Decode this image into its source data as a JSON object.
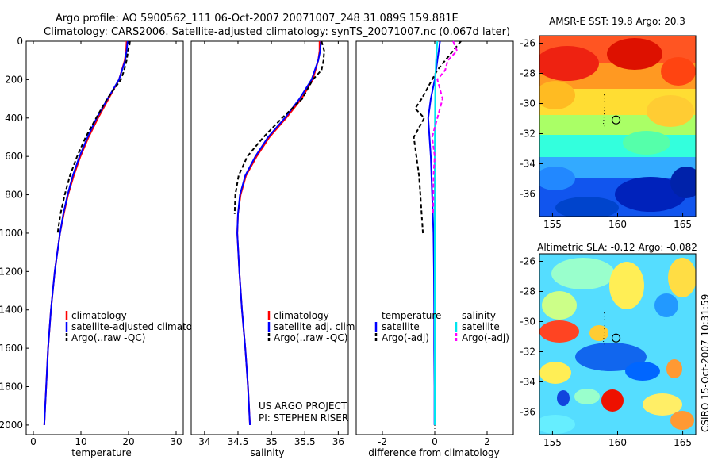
{
  "figure": {
    "title_line1": "Argo profile: AO 5900562_111 06-Oct-2007 20071007_248 31.089S 159.881E",
    "title_line2": "Climatology: CARS2006. Satellite-adjusted climatology: synTS_20071007.nc (0.067d later)",
    "footer_project": "US ARGO PROJECT",
    "footer_pi": "PI: STEPHEN RISER",
    "side_stamp": "CSIRO 15-Oct-2007 10:31:59"
  },
  "colors": {
    "climatology": "#ff0000",
    "satellite": "#0000ff",
    "argo": "#000000",
    "satellite_diff_salinity": "#00e5ee",
    "argo_diff_salinity": "#ff00ff"
  },
  "chart_data": [
    {
      "id": "temperature",
      "type": "line",
      "xlabel": "temperature",
      "xlim": [
        -1.5,
        31.5
      ],
      "ylim": [
        0,
        2050
      ],
      "x_ticks": [
        0,
        10,
        20,
        30
      ],
      "y_ticks": [
        0,
        200,
        400,
        600,
        800,
        1000,
        1200,
        1400,
        1600,
        1800,
        2000
      ],
      "legend": [
        "climatology",
        "satellite-adjusted climatology",
        "Argo(..raw -QC)"
      ],
      "series": [
        {
          "name": "climatology",
          "color": "#ff0000",
          "style": "solid",
          "depth": [
            0,
            50,
            100,
            200,
            300,
            400,
            500,
            600,
            700,
            800,
            900,
            1000,
            1200,
            1400,
            1600,
            1800,
            2000
          ],
          "values": [
            19.6,
            19.5,
            19.2,
            18.0,
            15.8,
            13.6,
            11.6,
            9.9,
            8.5,
            7.3,
            6.4,
            5.6,
            4.5,
            3.7,
            3.1,
            2.7,
            2.3
          ]
        },
        {
          "name": "satellite-adjusted climatology",
          "color": "#0000ff",
          "style": "solid",
          "depth": [
            0,
            50,
            100,
            200,
            300,
            400,
            500,
            600,
            700,
            800,
            900,
            1000,
            1200,
            1400,
            1600,
            1800,
            2000
          ],
          "values": [
            19.8,
            19.6,
            19.3,
            18.0,
            15.6,
            13.3,
            11.4,
            9.7,
            8.3,
            7.2,
            6.3,
            5.6,
            4.5,
            3.7,
            3.1,
            2.7,
            2.3
          ]
        },
        {
          "name": "Argo(..raw -QC)",
          "color": "#000000",
          "style": "dashed",
          "depth": [
            0,
            20,
            50,
            100,
            150,
            200,
            300,
            400,
            500,
            600,
            700,
            800,
            900,
            1000
          ],
          "values": [
            20.3,
            20.2,
            19.9,
            19.6,
            19.1,
            18.4,
            15.5,
            13.2,
            11.0,
            9.2,
            7.7,
            6.6,
            5.7,
            5.1
          ]
        }
      ]
    },
    {
      "id": "salinity",
      "type": "line",
      "xlabel": "salinity",
      "xlim": [
        33.8,
        36.15
      ],
      "ylim": [
        0,
        2050
      ],
      "x_ticks": [
        34,
        34.5,
        35,
        35.5,
        36
      ],
      "legend": [
        "climatology",
        "satellite adj. clim.",
        "Argo(..raw -QC)"
      ],
      "series": [
        {
          "name": "climatology",
          "color": "#ff0000",
          "style": "solid",
          "depth": [
            0,
            50,
            100,
            200,
            300,
            400,
            500,
            600,
            700,
            800,
            900,
            1000,
            1200,
            1400,
            1600,
            1800,
            2000
          ],
          "values": [
            35.72,
            35.72,
            35.7,
            35.62,
            35.45,
            35.22,
            34.97,
            34.78,
            34.62,
            34.54,
            34.5,
            34.49,
            34.52,
            34.56,
            34.61,
            34.65,
            34.68
          ]
        },
        {
          "name": "satellite adj. clim.",
          "color": "#0000ff",
          "style": "solid",
          "depth": [
            0,
            50,
            100,
            200,
            300,
            400,
            500,
            600,
            700,
            800,
            900,
            1000,
            1200,
            1400,
            1600,
            1800,
            2000
          ],
          "values": [
            35.74,
            35.73,
            35.7,
            35.6,
            35.42,
            35.2,
            34.95,
            34.76,
            34.61,
            34.53,
            34.5,
            34.49,
            34.52,
            34.56,
            34.61,
            34.65,
            34.68
          ]
        },
        {
          "name": "Argo(..raw -QC)",
          "color": "#000000",
          "style": "dashed",
          "depth": [
            0,
            50,
            100,
            150,
            200,
            300,
            400,
            500,
            600,
            700,
            800,
            900
          ],
          "values": [
            35.75,
            35.79,
            35.78,
            35.75,
            35.62,
            35.46,
            35.16,
            34.88,
            34.64,
            34.51,
            34.46,
            34.45
          ]
        }
      ]
    },
    {
      "id": "difference",
      "type": "line",
      "xlabel": "difference from climatology",
      "xlim": [
        -3.0,
        3.0
      ],
      "ylim": [
        0,
        2050
      ],
      "x_ticks": [
        -2,
        0,
        2
      ],
      "legend_headers": [
        "temperature",
        "salinity"
      ],
      "legend": [
        "satellite",
        "Argo(-adj)",
        "satellite",
        "Argo(-adj)"
      ],
      "series": [
        {
          "name": "temperature satellite",
          "color": "#0000ff",
          "style": "solid",
          "depth": [
            0,
            50,
            100,
            200,
            300,
            400,
            500,
            600,
            800,
            1000,
            1200,
            1400,
            1600,
            1800,
            2000
          ],
          "values": [
            0.2,
            0.15,
            0.1,
            0.0,
            -0.15,
            -0.25,
            -0.2,
            -0.15,
            -0.1,
            -0.05,
            -0.03,
            -0.02,
            -0.02,
            -0.01,
            -0.01
          ]
        },
        {
          "name": "temperature Argo(-adj)",
          "color": "#000000",
          "style": "dashed",
          "depth": [
            0,
            50,
            100,
            150,
            200,
            300,
            350,
            400,
            500,
            600,
            700,
            800,
            900,
            1000
          ],
          "values": [
            1.0,
            0.7,
            0.4,
            0.1,
            -0.1,
            -0.5,
            -0.75,
            -0.4,
            -0.8,
            -0.7,
            -0.6,
            -0.55,
            -0.5,
            -0.45
          ]
        },
        {
          "name": "salinity satellite",
          "color": "#00e5ee",
          "style": "solid",
          "depth": [
            0,
            100,
            200,
            400,
            600,
            800,
            1000,
            1200,
            1600,
            2000
          ],
          "values": [
            0.1,
            0.05,
            0.02,
            0.01,
            0.0,
            0.0,
            0.0,
            0.0,
            0.0,
            0.0
          ]
        },
        {
          "name": "salinity Argo(-adj)",
          "color": "#ff00ff",
          "style": "dashed",
          "depth": [
            0,
            50,
            100,
            150,
            200,
            300,
            400,
            500,
            600,
            700,
            800,
            900
          ],
          "values": [
            0.7,
            0.85,
            0.5,
            0.4,
            0.1,
            0.3,
            0.1,
            -0.1,
            0.0,
            -0.05,
            -0.05,
            -0.06
          ]
        }
      ]
    },
    {
      "id": "sst_map",
      "type": "heatmap",
      "title": "AMSR-E SST: 19.8 Argo: 20.3",
      "xlim": [
        154,
        166
      ],
      "ylim": [
        -37.5,
        -25.5
      ],
      "x_ticks": [
        155,
        160,
        165
      ],
      "y_ticks": [
        -26,
        -28,
        -30,
        -32,
        -34,
        -36
      ],
      "marker": {
        "lon": 159.88,
        "lat": -31.09
      }
    },
    {
      "id": "sla_map",
      "type": "heatmap",
      "title": "Altimetric SLA: -0.12 Argo: -0.082",
      "xlim": [
        154,
        166
      ],
      "ylim": [
        -37.5,
        -25.5
      ],
      "x_ticks": [
        155,
        160,
        165
      ],
      "y_ticks": [
        -26,
        -28,
        -30,
        -32,
        -34,
        -36
      ],
      "marker": {
        "lon": 159.88,
        "lat": -31.09
      }
    }
  ]
}
